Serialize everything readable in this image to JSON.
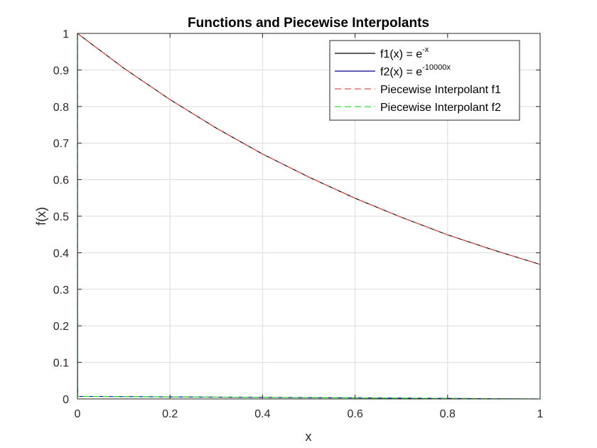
{
  "chart_data": {
    "type": "line",
    "title": "Functions and Piecewise Interpolants",
    "xlabel": "x",
    "ylabel": "f(x)",
    "xlim": [
      0,
      1
    ],
    "ylim": [
      0,
      1
    ],
    "xticks": [
      0,
      0.2,
      0.4,
      0.6,
      0.8,
      1
    ],
    "xtick_labels": [
      "0",
      "0.2",
      "0.4",
      "0.6",
      "0.8",
      "1"
    ],
    "yticks": [
      0,
      0.1,
      0.2,
      0.3,
      0.4,
      0.5,
      0.6,
      0.7,
      0.8,
      0.9,
      1
    ],
    "ytick_labels": [
      "0",
      "0.1",
      "0.2",
      "0.3",
      "0.4",
      "0.5",
      "0.6",
      "0.7",
      "0.8",
      "0.9",
      "1"
    ],
    "grid": true,
    "legend_position": "top-right",
    "series": [
      {
        "name": "f1(x) = e-x",
        "legend_base": "f1(x) = e",
        "legend_sup": "-x",
        "color": "#000000",
        "style": "solid",
        "x": [
          0,
          0.1,
          0.2,
          0.3,
          0.4,
          0.5,
          0.6,
          0.7,
          0.8,
          0.9,
          1.0
        ],
        "y": [
          1.0,
          0.905,
          0.819,
          0.741,
          0.67,
          0.607,
          0.549,
          0.497,
          0.449,
          0.407,
          0.368
        ]
      },
      {
        "name": "f2(x) = e-10000x",
        "legend_base": "f2(x) = e",
        "legend_sup": "-10000x",
        "color": "#00008b",
        "style": "solid",
        "x": [
          0,
          0.0001,
          0.0003,
          0.0005,
          1.0
        ],
        "y": [
          1.0,
          0.368,
          0.05,
          0.007,
          0.0
        ]
      },
      {
        "name": "Piecewise Interpolant f1",
        "legend_base": "Piecewise Interpolant f1",
        "legend_sup": "",
        "color": "#d9534f",
        "style": "dashed",
        "x": [
          0,
          0.1,
          0.2,
          0.3,
          0.4,
          0.5,
          0.6,
          0.7,
          0.8,
          0.9,
          1.0
        ],
        "y": [
          1.0,
          0.905,
          0.819,
          0.741,
          0.67,
          0.607,
          0.549,
          0.497,
          0.449,
          0.407,
          0.368
        ]
      },
      {
        "name": "Piecewise Interpolant f2",
        "legend_base": "Piecewise Interpolant f2",
        "legend_sup": "",
        "color": "#33dd33",
        "style": "dashed",
        "x": [
          0,
          0.0001,
          0.0003,
          0.0005,
          1.0
        ],
        "y": [
          1.0,
          0.368,
          0.05,
          0.007,
          0.0
        ]
      }
    ]
  }
}
